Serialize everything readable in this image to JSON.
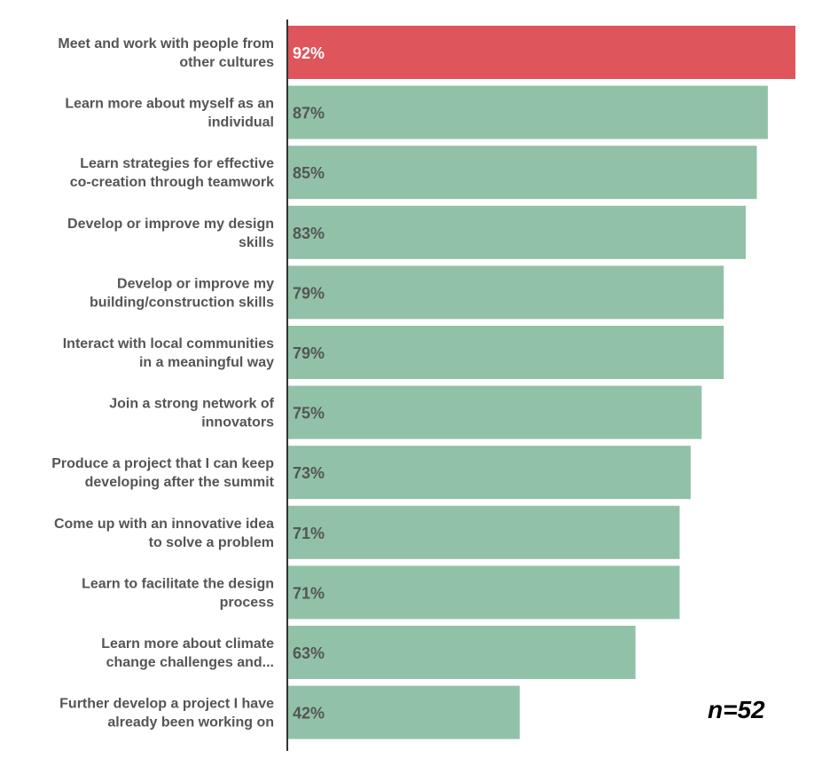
{
  "chart_data": {
    "type": "bar",
    "orientation": "horizontal",
    "categories": [
      [
        "Meet and work with people from",
        "other cultures"
      ],
      [
        "Learn more about myself as an",
        "individual"
      ],
      [
        "Learn strategies for effective",
        "co-creation through teamwork"
      ],
      [
        "Develop or improve my design",
        "skills"
      ],
      [
        "Develop or improve my",
        "building/construction skills"
      ],
      [
        "Interact with local communities",
        "in a meaningful way"
      ],
      [
        "Join a strong network of",
        "innovators"
      ],
      [
        "Produce a project that I can keep",
        "developing after the summit"
      ],
      [
        "Come up with an innovative idea",
        "to solve a problem"
      ],
      [
        "Learn to facilitate the design",
        "process"
      ],
      [
        "Learn more about climate",
        "change challenges and..."
      ],
      [
        "Further develop a project I have",
        "already been working on"
      ]
    ],
    "values": [
      92,
      87,
      85,
      83,
      79,
      79,
      75,
      73,
      71,
      71,
      63,
      42
    ],
    "value_labels": [
      "92%",
      "87%",
      "85%",
      "83%",
      "79%",
      "79%",
      "75%",
      "73%",
      "71%",
      "71%",
      "63%",
      "42%"
    ],
    "xlim": [
      0,
      92
    ],
    "grid": false,
    "highlight_index": 0,
    "colors": {
      "highlight": "#de555b",
      "bar": "#91c2a8",
      "highlight_label": "#ffffff",
      "value_label": "#555555",
      "axis": "#333333"
    },
    "annotation": "n=52"
  }
}
